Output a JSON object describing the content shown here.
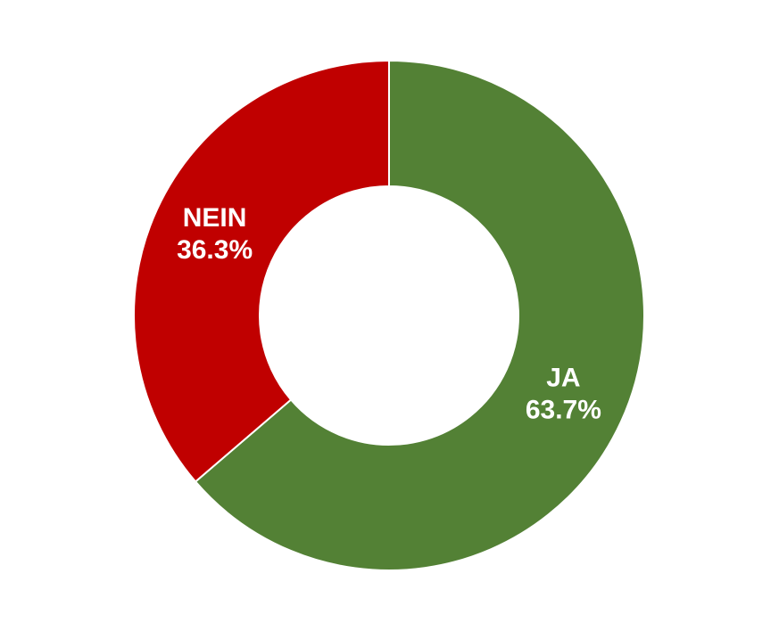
{
  "chart_data": {
    "type": "donut",
    "categories": [
      "JA",
      "NEIN"
    ],
    "values": [
      63.7,
      36.3
    ],
    "value_labels": [
      "63.7%",
      "36.3%"
    ],
    "colors": [
      "#538135",
      "#c00000"
    ]
  }
}
